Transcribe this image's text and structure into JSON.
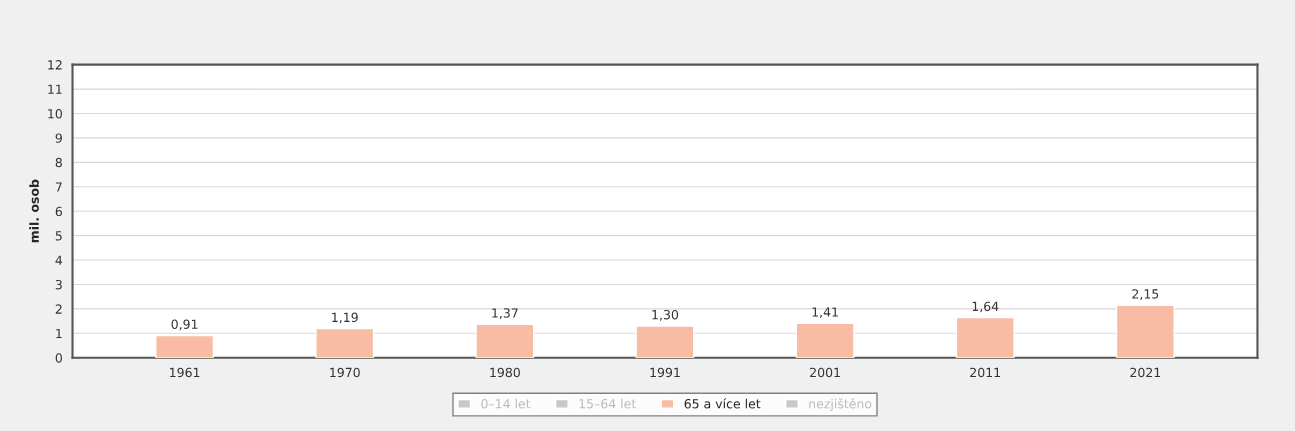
{
  "chart_data": {
    "type": "bar",
    "ylabel": "mil. osob",
    "categories": [
      "1961",
      "1970",
      "1980",
      "1991",
      "2001",
      "2011",
      "2021"
    ],
    "series": [
      {
        "name": "0–14 let",
        "color": "#c8c8c8",
        "values": [
          null,
          null,
          null,
          null,
          null,
          null,
          null
        ]
      },
      {
        "name": "15–64 let",
        "color": "#c8c8c8",
        "values": [
          null,
          null,
          null,
          null,
          null,
          null,
          null
        ]
      },
      {
        "name": "65 a více let",
        "color": "#f8bba3",
        "values": [
          0.91,
          1.19,
          1.37,
          1.3,
          1.41,
          1.64,
          2.15
        ],
        "value_labels": [
          "0,91",
          "1,19",
          "1,37",
          "1,30",
          "1,41",
          "1,64",
          "2,15"
        ]
      },
      {
        "name": "nezjištěno",
        "color": "#c8c8c8",
        "values": [
          null,
          null,
          null,
          null,
          null,
          null,
          null
        ]
      }
    ],
    "ylim": [
      0,
      12
    ],
    "yticks": [
      0,
      1,
      2,
      3,
      4,
      5,
      6,
      7,
      8,
      9,
      10,
      11,
      12
    ],
    "grid": "y",
    "legend": "bottom"
  }
}
